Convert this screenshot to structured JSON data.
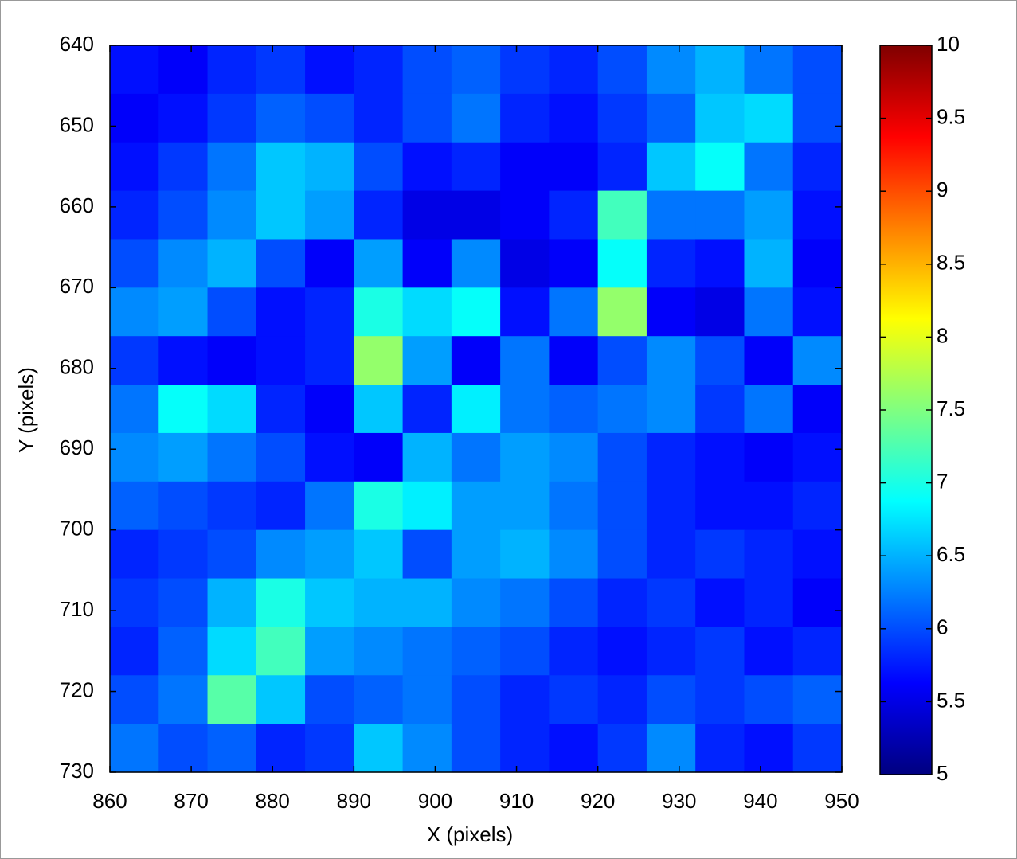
{
  "chart_data": {
    "type": "heatmap",
    "xlabel": "X (pixels)",
    "ylabel": "Y (pixels)",
    "xlim": [
      860,
      950
    ],
    "ylim": [
      640,
      730
    ],
    "y_reversed": true,
    "xticks": [
      860,
      870,
      880,
      890,
      900,
      910,
      920,
      930,
      940,
      950
    ],
    "yticks": [
      640,
      650,
      660,
      670,
      680,
      690,
      700,
      710,
      720,
      730
    ],
    "colormap": "jet",
    "clim": [
      5,
      10
    ],
    "cticks": [
      5,
      5.5,
      6,
      6.5,
      7,
      7.5,
      8,
      8.5,
      9,
      9.5,
      10
    ],
    "z": [
      [
        5.7,
        5.6,
        5.8,
        5.9,
        5.7,
        5.8,
        6.0,
        6.1,
        5.9,
        5.8,
        6.0,
        6.3,
        6.5,
        6.2,
        6.0
      ],
      [
        5.6,
        5.7,
        5.9,
        6.1,
        6.0,
        5.8,
        6.0,
        6.2,
        5.8,
        5.7,
        5.9,
        6.1,
        6.6,
        6.7,
        6.0
      ],
      [
        5.7,
        5.9,
        6.2,
        6.6,
        6.5,
        6.0,
        5.7,
        5.8,
        5.6,
        5.6,
        5.8,
        6.6,
        6.9,
        6.2,
        5.8
      ],
      [
        5.8,
        6.0,
        6.3,
        6.6,
        6.4,
        5.8,
        5.5,
        5.5,
        5.6,
        5.8,
        7.2,
        6.2,
        6.2,
        6.4,
        5.7
      ],
      [
        6.0,
        6.3,
        6.5,
        6.0,
        5.6,
        6.4,
        5.6,
        6.3,
        5.5,
        5.6,
        6.9,
        5.8,
        5.7,
        6.5,
        5.6
      ],
      [
        6.3,
        6.4,
        6.0,
        5.7,
        5.8,
        7.0,
        6.7,
        6.9,
        5.7,
        6.2,
        7.6,
        5.6,
        5.5,
        6.2,
        5.7
      ],
      [
        5.9,
        5.7,
        5.6,
        5.7,
        5.8,
        7.6,
        6.4,
        5.6,
        6.2,
        5.6,
        6.0,
        6.3,
        6.0,
        5.6,
        6.3
      ],
      [
        6.2,
        6.9,
        6.7,
        5.8,
        5.6,
        6.6,
        5.8,
        6.8,
        6.2,
        6.1,
        6.2,
        6.3,
        5.9,
        6.2,
        5.6
      ],
      [
        6.3,
        6.4,
        6.2,
        6.0,
        5.7,
        5.6,
        6.5,
        6.2,
        6.4,
        6.3,
        6.0,
        5.8,
        5.7,
        5.6,
        5.7
      ],
      [
        6.1,
        6.0,
        5.9,
        5.8,
        6.2,
        7.0,
        6.8,
        6.4,
        6.4,
        6.2,
        6.0,
        5.8,
        5.7,
        5.7,
        5.8
      ],
      [
        5.8,
        5.9,
        6.0,
        6.3,
        6.4,
        6.6,
        6.0,
        6.4,
        6.5,
        6.3,
        6.0,
        5.8,
        5.9,
        5.8,
        5.7
      ],
      [
        5.9,
        6.0,
        6.5,
        7.0,
        6.6,
        6.5,
        6.5,
        6.3,
        6.2,
        6.0,
        5.8,
        5.9,
        5.7,
        5.8,
        5.6
      ],
      [
        5.8,
        6.1,
        6.7,
        7.2,
        6.4,
        6.3,
        6.2,
        6.1,
        6.0,
        5.8,
        5.7,
        5.8,
        5.9,
        5.7,
        5.8
      ],
      [
        6.0,
        6.2,
        7.3,
        6.6,
        6.0,
        6.1,
        6.2,
        6.0,
        5.8,
        5.9,
        5.8,
        6.0,
        5.9,
        6.0,
        6.1
      ],
      [
        6.2,
        6.0,
        6.1,
        5.8,
        5.9,
        6.6,
        6.3,
        6.0,
        5.8,
        5.7,
        5.9,
        6.3,
        5.8,
        5.7,
        5.9
      ]
    ]
  }
}
